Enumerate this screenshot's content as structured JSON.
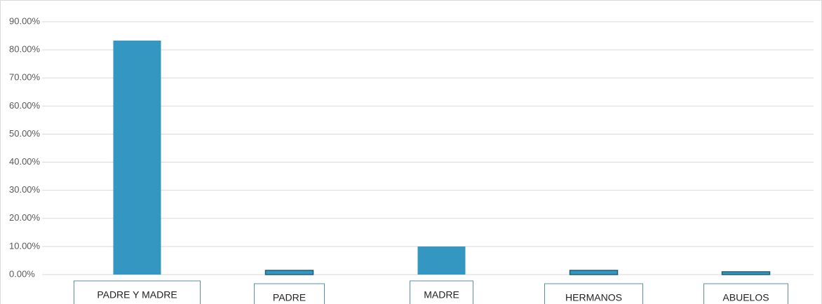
{
  "chart_data": {
    "type": "bar",
    "categories": [
      "PADRE Y MADRE",
      "PADRE",
      "MADRE",
      "HERMANOS",
      "ABUELOS"
    ],
    "values": [
      83.3,
      1.5,
      10,
      1.5,
      1
    ],
    "color": "#3497c1",
    "ylim": [
      0,
      90
    ],
    "yticks": [
      {
        "value": 0,
        "label": "0.00%"
      },
      {
        "value": 10,
        "label": "10.00%"
      },
      {
        "value": 20,
        "label": "20.00%"
      },
      {
        "value": 30,
        "label": "30.00%"
      },
      {
        "value": 40,
        "label": "40.00%"
      },
      {
        "value": 50,
        "label": "50.00%"
      },
      {
        "value": 60,
        "label": "60.00%"
      },
      {
        "value": 70,
        "label": "70.00%"
      },
      {
        "value": 80,
        "label": "80.00%"
      },
      {
        "value": 90,
        "label": "90.00%"
      }
    ],
    "grid": true
  }
}
